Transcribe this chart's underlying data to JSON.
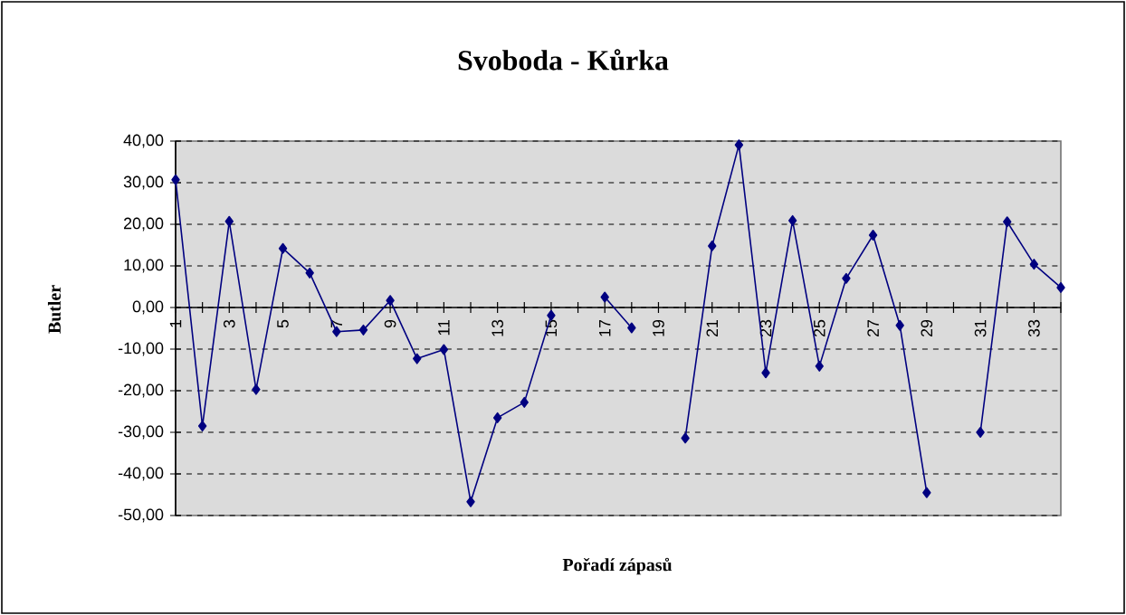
{
  "chart_data": {
    "type": "line",
    "title": "Svoboda - Kůrka",
    "xlabel": "Pořadí zápasů",
    "ylabel": "Butler",
    "categories": [
      "1",
      null,
      "3",
      null,
      "5",
      null,
      "7",
      null,
      "9",
      null,
      "11",
      null,
      "13",
      null,
      "15",
      null,
      "17",
      null,
      "19",
      null,
      "21",
      null,
      "23",
      null,
      "25",
      null,
      "27",
      null,
      "29",
      null,
      "31",
      null,
      "33",
      null
    ],
    "values": [
      30.7,
      -28.5,
      20.7,
      -19.7,
      14.2,
      8.3,
      -5.8,
      -5.4,
      1.7,
      -12.3,
      -10.1,
      -46.7,
      -26.5,
      -22.8,
      -1.9,
      null,
      2.5,
      -4.9,
      null,
      -31.4,
      14.8,
      39.1,
      -15.7,
      20.9,
      -14.1,
      7.0,
      17.4,
      -4.3,
      -44.5,
      null,
      -30.0,
      20.6,
      10.4,
      4.8
    ],
    "color": "#000080",
    "marker": "diamond",
    "grid": "y",
    "ylim": [
      -50,
      40
    ],
    "yticks": [
      {
        "value": -50,
        "label": "-50,00"
      },
      {
        "value": -40,
        "label": "-40,00"
      },
      {
        "value": -30,
        "label": "-30,00"
      },
      {
        "value": -20,
        "label": "-20,00"
      },
      {
        "value": -10,
        "label": "-10,00"
      },
      {
        "value": 0,
        "label": "0,00"
      },
      {
        "value": 10,
        "label": "10,00"
      },
      {
        "value": 20,
        "label": "20,00"
      },
      {
        "value": 30,
        "label": "30,00"
      },
      {
        "value": 40,
        "label": "40,00"
      }
    ]
  }
}
